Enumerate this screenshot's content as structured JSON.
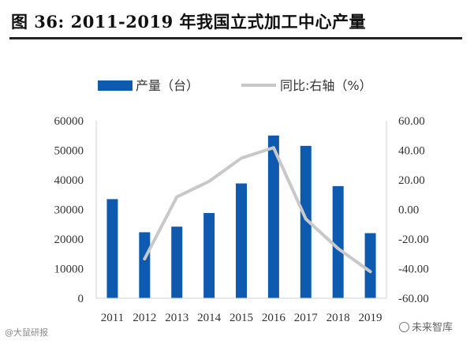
{
  "figure": {
    "label": "图 36:",
    "title": "2011-2019 年我国立式加工中心产量"
  },
  "chart_data": {
    "type": "bar",
    "categories": [
      "2011",
      "2012",
      "2013",
      "2014",
      "2015",
      "2016",
      "2017",
      "2018",
      "2019"
    ],
    "series": [
      {
        "name": "产量（台）",
        "type": "bar",
        "axis": "left",
        "color": "#0E5AAE",
        "values": [
          33500,
          22300,
          24200,
          28800,
          38800,
          55000,
          51500,
          37900,
          22000
        ]
      },
      {
        "name": "同比:右轴（%）",
        "type": "line",
        "axis": "right",
        "color": "#C8C8C8",
        "values": [
          null,
          -33.4,
          8.5,
          19.0,
          34.7,
          41.8,
          -6.4,
          -26.4,
          -42.0
        ]
      }
    ],
    "y_left": {
      "min": 0,
      "max": 60000,
      "ticks": [
        "0",
        "10000",
        "20000",
        "30000",
        "40000",
        "50000",
        "60000"
      ]
    },
    "y_right": {
      "min": -60,
      "max": 60,
      "ticks": [
        "-60.00",
        "-40.00",
        "-20.00",
        "0.00",
        "20.00",
        "40.00",
        "60.00"
      ]
    },
    "grid": false,
    "legend_position": "top-center"
  },
  "watermarks": {
    "left": "@大鼠研报",
    "right": "未来智库"
  }
}
